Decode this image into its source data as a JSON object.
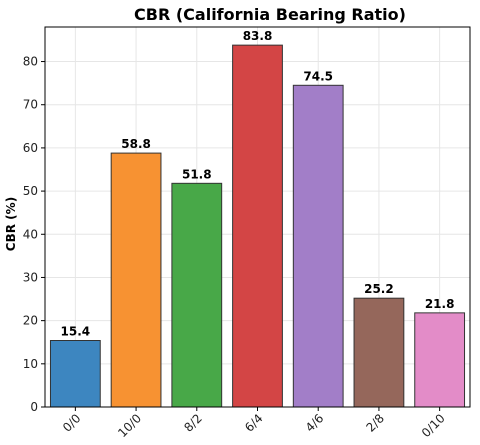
{
  "chart_data": {
    "type": "bar",
    "title": "CBR (California Bearing Ratio)",
    "xlabel": "",
    "ylabel": "CBR (%)",
    "ylim": [
      0,
      88
    ],
    "yticks": [
      0,
      10,
      20,
      30,
      40,
      50,
      60,
      70,
      80
    ],
    "grid": true,
    "categories": [
      "0/0",
      "10/0",
      "8/2",
      "6/4",
      "4/6",
      "2/8",
      "0/10"
    ],
    "values": [
      15.4,
      58.8,
      51.8,
      83.8,
      74.5,
      25.2,
      21.8
    ],
    "value_labels": [
      "15.4",
      "58.8",
      "51.8",
      "83.8",
      "74.5",
      "25.2",
      "21.8"
    ],
    "colors": [
      "#3d86c0",
      "#f79232",
      "#48a848",
      "#d34545",
      "#a27ec8",
      "#95675b",
      "#e38cc8"
    ]
  }
}
